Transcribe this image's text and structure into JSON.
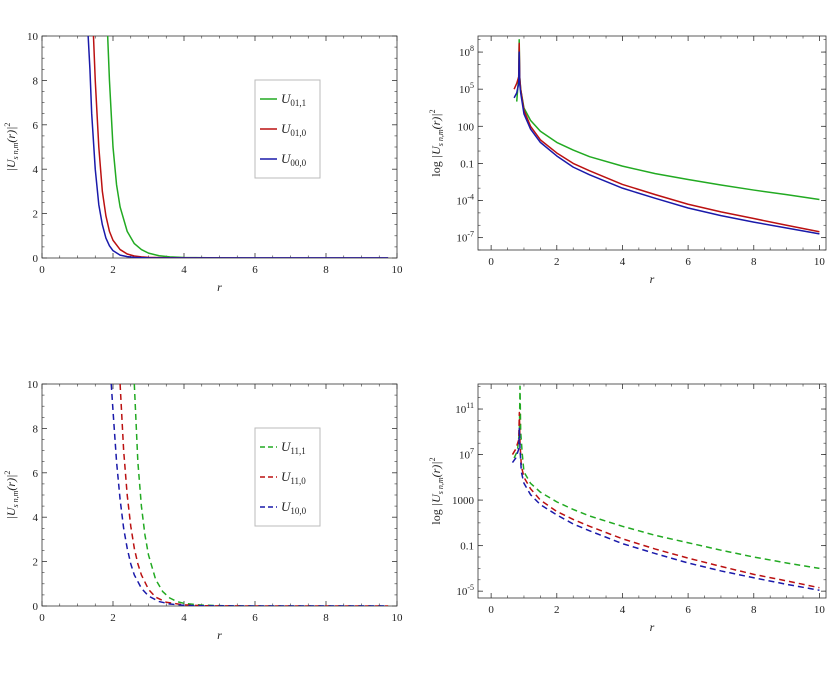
{
  "chart_data": [
    {
      "type": "line",
      "scale": "linear",
      "xlabel": "r",
      "ylabel": "|U_{s n,m}(r)|^2",
      "xlim": [
        0,
        10
      ],
      "ylim": [
        0,
        10
      ],
      "x_ticks": [
        0,
        2,
        4,
        6,
        8,
        10
      ],
      "y_ticks": [
        0,
        2,
        4,
        6,
        8,
        10
      ],
      "x_tick_labels": [
        "0",
        "2",
        "4",
        "6",
        "8",
        "10"
      ],
      "y_tick_labels": [
        "0",
        "2",
        "4",
        "6",
        "8",
        "10"
      ],
      "legend_position": "center-right",
      "series": [
        {
          "name": "U01,1",
          "name_main": "U",
          "name_sub": "01,1",
          "color": "#22aa22",
          "dash": "solid",
          "x": [
            1.85,
            1.9,
            2.0,
            2.1,
            2.2,
            2.4,
            2.6,
            2.8,
            3.0,
            3.3,
            3.6,
            4.0,
            5.0,
            6.0,
            7.0,
            8.0,
            9.0,
            9.75
          ],
          "y": [
            10,
            8.0,
            5.0,
            3.3,
            2.3,
            1.2,
            0.65,
            0.38,
            0.22,
            0.1,
            0.05,
            0.02,
            0.005,
            0.002,
            0.001,
            0,
            0,
            0
          ]
        },
        {
          "name": "U01,0",
          "name_main": "U",
          "name_sub": "01,0",
          "color": "#bb1111",
          "dash": "solid",
          "x": [
            1.45,
            1.5,
            1.6,
            1.7,
            1.8,
            1.9,
            2.0,
            2.2,
            2.4,
            2.6,
            2.8,
            3.0,
            3.5,
            4.0,
            6.0,
            8.0,
            9.75
          ],
          "y": [
            10,
            8.0,
            5.0,
            3.0,
            1.9,
            1.2,
            0.8,
            0.38,
            0.18,
            0.09,
            0.05,
            0.03,
            0.01,
            0.003,
            0,
            0,
            0
          ]
        },
        {
          "name": "U00,0",
          "name_main": "U",
          "name_sub": "00,0",
          "color": "#1a1aaa",
          "dash": "solid",
          "x": [
            1.3,
            1.35,
            1.4,
            1.5,
            1.6,
            1.7,
            1.8,
            1.9,
            2.0,
            2.2,
            2.4,
            2.6,
            3.0,
            3.5,
            4.0,
            6.0,
            8.0,
            9.75
          ],
          "y": [
            10,
            8.5,
            6.5,
            4.0,
            2.4,
            1.5,
            0.9,
            0.55,
            0.33,
            0.13,
            0.06,
            0.03,
            0.008,
            0.002,
            0.001,
            0,
            0,
            0
          ]
        }
      ]
    },
    {
      "type": "line",
      "scale": "log",
      "xlabel": "r",
      "ylabel": "log |U_{s n,m}(r)|^2",
      "xlim": [
        -0.4,
        10.2
      ],
      "ylim_log10": [
        -8,
        9.3
      ],
      "x_ticks": [
        0,
        2,
        4,
        6,
        8,
        10
      ],
      "x_tick_labels": [
        "0",
        "2",
        "4",
        "6",
        "8",
        "10"
      ],
      "y_ticks": [
        {
          "value": 1e-07,
          "label_base": "10",
          "label_exp": "-7"
        },
        {
          "value": 0.0001,
          "label_base": "10",
          "label_exp": "-4"
        },
        {
          "value": 0.1,
          "label_base": "0.1",
          "label_exp": ""
        },
        {
          "value": 100,
          "label_base": "100",
          "label_exp": ""
        },
        {
          "value": 100000.0,
          "label_base": "10",
          "label_exp": "5"
        },
        {
          "value": 100000000.0,
          "label_base": "10",
          "label_exp": "8"
        }
      ],
      "series": [
        {
          "name": "U01,1",
          "color": "#22aa22",
          "dash": "solid",
          "x": [
            0.78,
            0.8,
            0.84,
            0.855,
            0.87,
            0.9,
            1.0,
            1.2,
            1.5,
            2.0,
            2.5,
            3.0,
            4.0,
            5.0,
            6.0,
            7.0,
            8.0,
            9.0,
            10.0
          ],
          "y": [
            10000.0,
            50000.0,
            1000000.0,
            1000000000.0,
            1000000.0,
            100000.0,
            3000.0,
            300,
            40,
            5,
            1.2,
            0.35,
            0.06,
            0.015,
            0.005,
            0.0018,
            0.0007,
            0.0003,
            0.00012
          ]
        },
        {
          "name": "U01,0",
          "color": "#bb1111",
          "dash": "solid",
          "x": [
            0.7,
            0.78,
            0.84,
            0.855,
            0.87,
            0.9,
            1.0,
            1.2,
            1.5,
            2.0,
            2.5,
            3.0,
            4.0,
            5.0,
            6.0,
            7.0,
            8.0,
            9.0,
            10.0
          ],
          "y": [
            100000.0,
            300000.0,
            1000000.0,
            500000000.0,
            1000000.0,
            100000.0,
            2000.0,
            100,
            8,
            0.7,
            0.1,
            0.025,
            0.002,
            0.0003,
            5e-05,
            1.2e-05,
            3.5e-06,
            1e-06,
            3e-07
          ]
        },
        {
          "name": "U00,0",
          "color": "#1a1aaa",
          "dash": "solid",
          "x": [
            0.7,
            0.78,
            0.84,
            0.855,
            0.87,
            0.9,
            1.0,
            1.2,
            1.5,
            2.0,
            2.5,
            3.0,
            4.0,
            5.0,
            6.0,
            7.0,
            8.0,
            9.0,
            10.0
          ],
          "y": [
            20000.0,
            50000.0,
            300000.0,
            100000000.0,
            300000.0,
            50000.0,
            1000.0,
            60,
            5,
            0.4,
            0.05,
            0.012,
            0.001,
            0.00015,
            2.5e-05,
            6e-06,
            1.8e-06,
            6e-07,
            2e-07
          ]
        }
      ]
    },
    {
      "type": "line",
      "scale": "linear",
      "xlabel": "r",
      "ylabel": "|U_{s n,m}(r)|^2",
      "xlim": [
        0,
        10
      ],
      "ylim": [
        0,
        10
      ],
      "x_ticks": [
        0,
        2,
        4,
        6,
        8,
        10
      ],
      "y_ticks": [
        0,
        2,
        4,
        6,
        8,
        10
      ],
      "x_tick_labels": [
        "0",
        "2",
        "4",
        "6",
        "8",
        "10"
      ],
      "y_tick_labels": [
        "0",
        "2",
        "4",
        "6",
        "8",
        "10"
      ],
      "legend_position": "center-right",
      "series": [
        {
          "name": "U11,1",
          "name_main": "U",
          "name_sub": "11,1",
          "color": "#22aa22",
          "dash": "dashed",
          "x": [
            2.6,
            2.7,
            2.8,
            2.9,
            3.0,
            3.2,
            3.4,
            3.6,
            3.8,
            4.0,
            4.5,
            5.0,
            5.5,
            6.0,
            7.0,
            8.0,
            9.75
          ],
          "y": [
            10,
            6.5,
            4.5,
            3.2,
            2.3,
            1.2,
            0.65,
            0.36,
            0.2,
            0.12,
            0.04,
            0.015,
            0.005,
            0.002,
            0,
            0,
            0
          ]
        },
        {
          "name": "U11,0",
          "name_main": "U",
          "name_sub": "11,0",
          "color": "#bb1111",
          "dash": "dashed",
          "x": [
            2.2,
            2.3,
            2.4,
            2.5,
            2.6,
            2.7,
            2.8,
            3.0,
            3.2,
            3.5,
            4.0,
            4.5,
            5.0,
            6.0,
            8.0,
            9.75
          ],
          "y": [
            10,
            7.0,
            5.0,
            3.6,
            2.6,
            1.9,
            1.4,
            0.75,
            0.4,
            0.17,
            0.05,
            0.015,
            0.005,
            0.001,
            0,
            0
          ]
        },
        {
          "name": "U10,0",
          "name_main": "U",
          "name_sub": "10,0",
          "color": "#1a1aaa",
          "dash": "dashed",
          "x": [
            1.95,
            2.0,
            2.1,
            2.2,
            2.3,
            2.4,
            2.5,
            2.6,
            2.8,
            3.0,
            3.3,
            3.6,
            4.0,
            4.5,
            5.0,
            6.0,
            8.0,
            9.75
          ],
          "y": [
            10,
            8.8,
            6.5,
            4.8,
            3.5,
            2.6,
            1.9,
            1.4,
            0.8,
            0.45,
            0.2,
            0.09,
            0.03,
            0.01,
            0.004,
            0.001,
            0,
            0
          ]
        }
      ]
    },
    {
      "type": "line",
      "scale": "log",
      "xlabel": "r",
      "ylabel": "log |U_{s n,m}(r)|^2",
      "xlim": [
        -0.4,
        10.2
      ],
      "ylim_log10": [
        -5.6,
        13.2
      ],
      "x_ticks": [
        0,
        2,
        4,
        6,
        8,
        10
      ],
      "x_tick_labels": [
        "0",
        "2",
        "4",
        "6",
        "8",
        "10"
      ],
      "y_ticks": [
        {
          "value": 1e-05,
          "label_base": "10",
          "label_exp": "-5"
        },
        {
          "value": 0.1,
          "label_base": "0.1",
          "label_exp": ""
        },
        {
          "value": 1000,
          "label_base": "1000",
          "label_exp": ""
        },
        {
          "value": 10000000.0,
          "label_base": "10",
          "label_exp": "7"
        },
        {
          "value": 100000000000.0,
          "label_base": "10",
          "label_exp": "11"
        }
      ],
      "series": [
        {
          "name": "U11,1",
          "color": "#22aa22",
          "dash": "dashed",
          "x": [
            0.7,
            0.8,
            0.86,
            0.88,
            0.9,
            0.95,
            1.0,
            1.2,
            1.5,
            2.0,
            2.5,
            3.0,
            4.0,
            5.0,
            6.0,
            7.0,
            8.0,
            9.0,
            10.0
          ],
          "y": [
            5000000.0,
            20000000.0,
            1000000000.0,
            10000000000000.0,
            1000000000.0,
            10000000.0,
            300000.0,
            30000.0,
            5000.0,
            700,
            150,
            40,
            5,
            0.8,
            0.18,
            0.04,
            0.01,
            0.003,
            0.001
          ]
        },
        {
          "name": "U11,0",
          "color": "#bb1111",
          "dash": "dashed",
          "x": [
            0.65,
            0.75,
            0.84,
            0.86,
            0.88,
            0.92,
            1.0,
            1.2,
            1.5,
            2.0,
            2.5,
            3.0,
            4.0,
            5.0,
            6.0,
            7.0,
            8.0,
            9.0,
            10.0
          ],
          "y": [
            10000000.0,
            30000000.0,
            200000000.0,
            50000000000.0,
            100000000.0,
            1000000.0,
            100000.0,
            10000.0,
            1000.0,
            100,
            20,
            5,
            0.4,
            0.05,
            0.008,
            0.0015,
            0.0003,
            8e-05,
            2e-05
          ]
        },
        {
          "name": "U10,0",
          "color": "#1a1aaa",
          "dash": "dashed",
          "x": [
            0.65,
            0.75,
            0.84,
            0.86,
            0.88,
            0.92,
            1.0,
            1.2,
            1.5,
            2.0,
            2.5,
            3.0,
            4.0,
            5.0,
            6.0,
            7.0,
            8.0,
            9.0,
            10.0
          ],
          "y": [
            2000000.0,
            5000000.0,
            30000000.0,
            2000000000.0,
            30000000.0,
            300000.0,
            30000.0,
            3000.0,
            400,
            50,
            8,
            2,
            0.15,
            0.02,
            0.003,
            0.0006,
            0.00015,
            4e-05,
            1.2e-05
          ]
        }
      ]
    }
  ]
}
